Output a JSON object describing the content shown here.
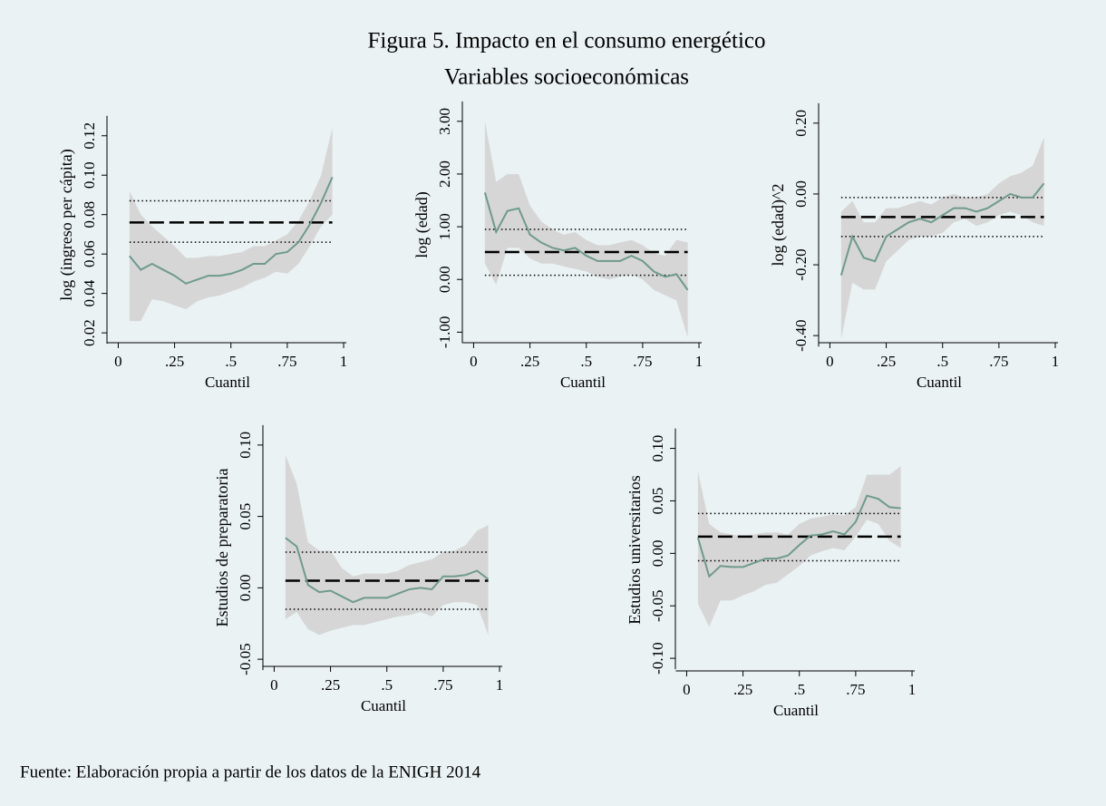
{
  "figure": {
    "title": "Figura 5. Impacto en el consumo energético",
    "subtitle": "Variables socioeconómicas",
    "source": "Fuente: Elaboración propia a partir de los datos de la ENIGH 2014"
  },
  "chart_data": [
    {
      "type": "line",
      "y_label": "log (ingreso per cápita)",
      "x_label": "Cuantil",
      "x": [
        0.05,
        0.1,
        0.15,
        0.2,
        0.25,
        0.3,
        0.35,
        0.4,
        0.45,
        0.5,
        0.55,
        0.6,
        0.65,
        0.7,
        0.75,
        0.8,
        0.85,
        0.9,
        0.95
      ],
      "values": [
        0.059,
        0.052,
        0.055,
        0.052,
        0.049,
        0.045,
        0.047,
        0.049,
        0.049,
        0.05,
        0.052,
        0.055,
        0.055,
        0.06,
        0.061,
        0.066,
        0.075,
        0.086,
        0.099
      ],
      "band_lower": [
        0.026,
        0.026,
        0.037,
        0.036,
        0.034,
        0.032,
        0.036,
        0.038,
        0.039,
        0.041,
        0.043,
        0.046,
        0.048,
        0.051,
        0.05,
        0.055,
        0.064,
        0.074,
        0.08
      ],
      "band_upper": [
        0.092,
        0.08,
        0.074,
        0.069,
        0.064,
        0.058,
        0.058,
        0.059,
        0.059,
        0.06,
        0.061,
        0.064,
        0.064,
        0.067,
        0.07,
        0.077,
        0.087,
        0.1,
        0.124
      ],
      "ols": 0.076,
      "ols_lower": 0.066,
      "ols_upper": 0.087,
      "color": "#6f9a8d",
      "band_color": "#d6d6d6",
      "ols_color": "#000000",
      "xlim": [
        -0.05,
        1.02
      ],
      "ylim": [
        0.015,
        0.13
      ],
      "xticks": [
        0,
        {
          "value": 0.25,
          "label": ".25"
        },
        {
          "value": 0.5,
          "label": ".5"
        },
        {
          "value": 0.75,
          "label": ".75"
        },
        1
      ],
      "yticks": [
        0.02,
        0.04,
        0.06,
        0.08,
        {
          "value": 0.1,
          "label": "0.10"
        },
        0.12
      ]
    },
    {
      "type": "line",
      "y_label": "log (edad)",
      "x_label": "Cuantil",
      "x": [
        0.05,
        0.1,
        0.15,
        0.2,
        0.25,
        0.3,
        0.35,
        0.4,
        0.45,
        0.5,
        0.55,
        0.6,
        0.65,
        0.7,
        0.75,
        0.8,
        0.85,
        0.9,
        0.95
      ],
      "values": [
        1.65,
        0.9,
        1.3,
        1.35,
        0.85,
        0.7,
        0.6,
        0.55,
        0.6,
        0.45,
        0.35,
        0.35,
        0.35,
        0.45,
        0.35,
        0.15,
        0.05,
        0.1,
        -0.2
      ],
      "band_lower": [
        0.3,
        -0.1,
        0.6,
        0.6,
        0.4,
        0.3,
        0.3,
        0.25,
        0.2,
        0.15,
        0.05,
        0.0,
        0.05,
        0.1,
        0.0,
        -0.2,
        -0.3,
        -0.4,
        -1.1
      ],
      "band_upper": [
        3.0,
        1.85,
        2.0,
        2.0,
        1.4,
        1.1,
        0.95,
        0.85,
        0.9,
        0.75,
        0.65,
        0.65,
        0.7,
        0.75,
        0.65,
        0.5,
        0.45,
        0.75,
        0.7
      ],
      "ols": 0.52,
      "ols_lower": 0.08,
      "ols_upper": 0.95,
      "color": "#6f9a8d",
      "band_color": "#d6d6d6",
      "ols_color": "#000000",
      "xlim": [
        -0.05,
        1.02
      ],
      "ylim": [
        -1.2,
        3.1
      ],
      "xticks": [
        0,
        {
          "value": 0.25,
          "label": ".25"
        },
        {
          "value": 0.5,
          "label": ".5"
        },
        {
          "value": 0.75,
          "label": ".75"
        },
        1
      ],
      "yticks": [
        {
          "value": -1,
          "label": "-1.00"
        },
        {
          "value": 0,
          "label": "0.00"
        },
        {
          "value": 1,
          "label": "1.00"
        },
        {
          "value": 2,
          "label": "2.00"
        },
        {
          "value": 3,
          "label": "3.00"
        }
      ]
    },
    {
      "type": "line",
      "y_label": "log (edad)^2",
      "x_label": "Cuantil",
      "x": [
        0.05,
        0.1,
        0.15,
        0.2,
        0.25,
        0.3,
        0.35,
        0.4,
        0.45,
        0.5,
        0.55,
        0.6,
        0.65,
        0.7,
        0.75,
        0.8,
        0.85,
        0.9,
        0.95
      ],
      "values": [
        -0.23,
        -0.12,
        -0.18,
        -0.19,
        -0.12,
        -0.1,
        -0.08,
        -0.07,
        -0.08,
        -0.06,
        -0.04,
        -0.04,
        -0.05,
        -0.04,
        -0.02,
        0.0,
        -0.01,
        -0.01,
        0.03
      ],
      "band_lower": [
        -0.41,
        -0.25,
        -0.27,
        -0.27,
        -0.19,
        -0.16,
        -0.13,
        -0.12,
        -0.12,
        -0.11,
        -0.08,
        -0.07,
        -0.09,
        -0.08,
        -0.06,
        -0.05,
        -0.06,
        -0.08,
        -0.09
      ],
      "band_upper": [
        -0.05,
        -0.02,
        -0.08,
        -0.08,
        -0.04,
        -0.04,
        -0.03,
        -0.02,
        -0.03,
        -0.01,
        0.0,
        -0.01,
        -0.01,
        0.0,
        0.03,
        0.05,
        0.06,
        0.08,
        0.16
      ],
      "ols": -0.065,
      "ols_lower": -0.12,
      "ols_upper": -0.01,
      "color": "#6f9a8d",
      "band_color": "#d6d6d6",
      "ols_color": "#000000",
      "xlim": [
        -0.05,
        1.02
      ],
      "ylim": [
        -0.42,
        0.22
      ],
      "xticks": [
        0,
        {
          "value": 0.25,
          "label": ".25"
        },
        {
          "value": 0.5,
          "label": ".5"
        },
        {
          "value": 0.75,
          "label": ".75"
        },
        1
      ],
      "yticks": [
        {
          "value": -0.4,
          "label": "-0.40"
        },
        {
          "value": -0.2,
          "label": "-0.20"
        },
        {
          "value": 0,
          "label": "0.00"
        },
        {
          "value": 0.2,
          "label": "0.20"
        }
      ]
    },
    {
      "type": "line",
      "y_label": "Estudios de preparatoria",
      "x_label": "Cuantil",
      "x": [
        0.05,
        0.1,
        0.15,
        0.2,
        0.25,
        0.3,
        0.35,
        0.4,
        0.45,
        0.5,
        0.55,
        0.6,
        0.65,
        0.7,
        0.75,
        0.8,
        0.85,
        0.9,
        0.95
      ],
      "values": [
        0.035,
        0.029,
        0.002,
        -0.003,
        -0.002,
        -0.006,
        -0.01,
        -0.007,
        -0.007,
        -0.007,
        -0.004,
        -0.001,
        0.0,
        -0.001,
        0.008,
        0.008,
        0.009,
        0.012,
        0.006
      ],
      "band_lower": [
        -0.022,
        -0.017,
        -0.029,
        -0.033,
        -0.03,
        -0.028,
        -0.026,
        -0.026,
        -0.024,
        -0.022,
        -0.02,
        -0.019,
        -0.017,
        -0.02,
        -0.012,
        -0.01,
        -0.01,
        -0.012,
        -0.033
      ],
      "band_upper": [
        0.093,
        0.073,
        0.032,
        0.026,
        0.026,
        0.014,
        0.008,
        0.01,
        0.01,
        0.01,
        0.012,
        0.016,
        0.018,
        0.02,
        0.025,
        0.026,
        0.03,
        0.04,
        0.044
      ],
      "ols": 0.005,
      "ols_lower": -0.015,
      "ols_upper": 0.025,
      "color": "#6f9a8d",
      "band_color": "#d6d6d6",
      "ols_color": "#000000",
      "xlim": [
        -0.05,
        1.02
      ],
      "ylim": [
        -0.055,
        0.105
      ],
      "xticks": [
        0,
        {
          "value": 0.25,
          "label": ".25"
        },
        {
          "value": 0.5,
          "label": ".5"
        },
        {
          "value": 0.75,
          "label": ".75"
        },
        1
      ],
      "yticks": [
        {
          "value": -0.05,
          "label": "-0.05"
        },
        {
          "value": 0,
          "label": "0.00"
        },
        0.05,
        {
          "value": 0.1,
          "label": "0.10"
        }
      ]
    },
    {
      "type": "line",
      "y_label": "Estudios universitarios",
      "x_label": "Cuantil",
      "x": [
        0.05,
        0.1,
        0.15,
        0.2,
        0.25,
        0.3,
        0.35,
        0.4,
        0.45,
        0.5,
        0.55,
        0.6,
        0.65,
        0.7,
        0.75,
        0.8,
        0.85,
        0.9,
        0.95
      ],
      "values": [
        0.015,
        -0.022,
        -0.012,
        -0.013,
        -0.013,
        -0.009,
        -0.005,
        -0.005,
        -0.002,
        0.008,
        0.017,
        0.018,
        0.021,
        0.018,
        0.03,
        0.055,
        0.052,
        0.044,
        0.043
      ],
      "band_lower": [
        -0.048,
        -0.07,
        -0.045,
        -0.045,
        -0.04,
        -0.036,
        -0.03,
        -0.028,
        -0.02,
        -0.012,
        -0.002,
        0.002,
        0.005,
        0.003,
        0.016,
        0.032,
        0.028,
        0.012,
        0.005
      ],
      "band_upper": [
        0.078,
        0.028,
        0.02,
        0.018,
        0.016,
        0.018,
        0.02,
        0.02,
        0.018,
        0.028,
        0.033,
        0.035,
        0.037,
        0.036,
        0.044,
        0.075,
        0.075,
        0.075,
        0.083
      ],
      "ols": 0.016,
      "ols_lower": -0.007,
      "ols_upper": 0.038,
      "color": "#6f9a8d",
      "band_color": "#d6d6d6",
      "ols_color": "#000000",
      "xlim": [
        -0.05,
        1.02
      ],
      "ylim": [
        -0.112,
        0.11
      ],
      "xticks": [
        0,
        {
          "value": 0.25,
          "label": ".25"
        },
        {
          "value": 0.5,
          "label": ".5"
        },
        {
          "value": 0.75,
          "label": ".75"
        },
        1
      ],
      "yticks": [
        {
          "value": -0.1,
          "label": "-0.10"
        },
        {
          "value": -0.05,
          "label": "-0.05"
        },
        {
          "value": 0,
          "label": "0.00"
        },
        0.05,
        {
          "value": 0.1,
          "label": "0.10"
        }
      ]
    }
  ]
}
